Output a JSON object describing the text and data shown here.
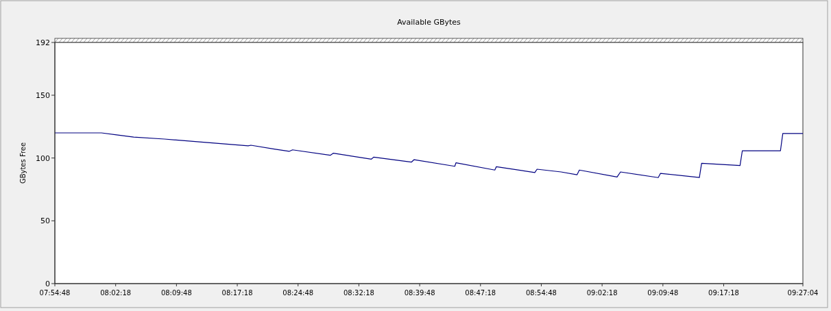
{
  "chart_data": {
    "type": "line",
    "title": "Available GBytes",
    "ylabel": "GBytes Free",
    "x": [
      7.91333,
      8.0092,
      8.0402,
      8.0754,
      8.1388,
      8.2234,
      8.3108,
      8.3164,
      8.3644,
      8.395,
      8.402,
      8.4795,
      8.4856,
      8.5641,
      8.5687,
      8.6463,
      8.6519,
      8.7355,
      8.7379,
      8.8178,
      8.821,
      8.9,
      8.9046,
      8.954,
      8.9869,
      8.9916,
      9.0691,
      9.0762,
      9.1537,
      9.1584,
      9.2383,
      9.2429,
      9.3219,
      9.3266,
      9.405,
      9.4098,
      9.4511
    ],
    "series": [
      {
        "color": "#000080",
        "values": [
          120,
          120,
          118.4,
          116.7,
          115.1,
          112.4,
          109.7,
          110.2,
          107.1,
          105.3,
          106.5,
          102.2,
          103.8,
          99.1,
          100.7,
          96.7,
          98.7,
          93.4,
          96.2,
          90.4,
          93.1,
          88.4,
          91.1,
          88.9,
          86.7,
          90.4,
          84.9,
          88.9,
          84.4,
          87.8,
          84.5,
          95.8,
          94,
          105.8,
          105.8,
          119.5,
          119.5
        ]
      }
    ],
    "xlim": [
      7.91333,
      9.45111
    ],
    "xticks": [
      {
        "value": 7.91333,
        "label": "07:54:48"
      },
      {
        "value": 8.03833,
        "label": "08:02:18"
      },
      {
        "value": 8.16333,
        "label": "08:09:48"
      },
      {
        "value": 8.28833,
        "label": "08:17:18"
      },
      {
        "value": 8.41333,
        "label": "08:24:48"
      },
      {
        "value": 8.53833,
        "label": "08:32:18"
      },
      {
        "value": 8.66333,
        "label": "08:39:48"
      },
      {
        "value": 8.78833,
        "label": "08:47:18"
      },
      {
        "value": 8.91333,
        "label": "08:54:48"
      },
      {
        "value": 9.03833,
        "label": "09:02:18"
      },
      {
        "value": 9.16333,
        "label": "09:09:48"
      },
      {
        "value": 9.28833,
        "label": "09:17:18"
      },
      {
        "value": 9.45111,
        "label": "09:27:04"
      }
    ],
    "ylim": [
      0,
      192
    ],
    "yticks": [
      0,
      50,
      100,
      150,
      192
    ],
    "grid": false,
    "line_style": "solid",
    "marker": "none"
  }
}
